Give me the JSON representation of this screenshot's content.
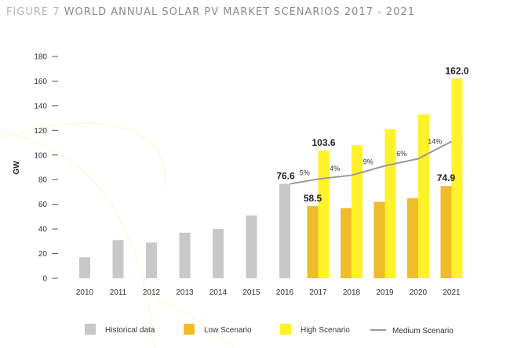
{
  "header": {
    "figure_label": "FIGURE 7",
    "title": "WORLD ANNUAL SOLAR PV MARKET SCENARIOS 2017 - 2021"
  },
  "chart_data": {
    "type": "bar",
    "title": "WORLD ANNUAL SOLAR PV MARKET SCENARIOS 2017 - 2021",
    "ylabel": "GW",
    "xlabel": "",
    "ylim": [
      0,
      180
    ],
    "yticks": [
      0,
      20,
      40,
      60,
      80,
      100,
      120,
      140,
      160,
      180
    ],
    "categories": [
      "2010",
      "2011",
      "2012",
      "2013",
      "2014",
      "2015",
      "2016",
      "2017",
      "2018",
      "2019",
      "2020",
      "2021"
    ],
    "grid": false,
    "legend_position": "bottom",
    "series": [
      {
        "name": "Historical data",
        "kind": "bar",
        "color": "#c8c8c8",
        "values": [
          17,
          31,
          29,
          37,
          40,
          51,
          76.6,
          null,
          null,
          null,
          null,
          null
        ]
      },
      {
        "name": "Low Scenario",
        "kind": "bar",
        "color": "#efbc2c",
        "values": [
          null,
          null,
          null,
          null,
          null,
          null,
          null,
          58.5,
          57,
          62,
          65,
          74.9
        ]
      },
      {
        "name": "High Scenario",
        "kind": "bar",
        "color": "#fff12a",
        "values": [
          null,
          null,
          null,
          null,
          null,
          null,
          null,
          103.6,
          108,
          121,
          133,
          162.0
        ]
      },
      {
        "name": "Medium Scenario",
        "kind": "line",
        "color": "#999999",
        "values": [
          null,
          null,
          null,
          null,
          null,
          null,
          76.6,
          80.5,
          83.6,
          91.2,
          97,
          111
        ]
      }
    ],
    "data_labels": [
      {
        "category": "2016",
        "text": "76.6",
        "value": 76.6
      },
      {
        "category": "2017",
        "text": "58.5",
        "value": 58.5
      },
      {
        "category": "2017",
        "text": "103.6",
        "value": 103.6
      },
      {
        "category": "2021",
        "text": "74.9",
        "value": 74.9
      },
      {
        "category": "2021",
        "text": "162.0",
        "value": 162.0
      }
    ],
    "growth_labels": [
      {
        "between": [
          "2016",
          "2017"
        ],
        "text": "5%"
      },
      {
        "between": [
          "2017",
          "2018"
        ],
        "text": "4%"
      },
      {
        "between": [
          "2018",
          "2019"
        ],
        "text": "9%"
      },
      {
        "between": [
          "2019",
          "2020"
        ],
        "text": "6%"
      },
      {
        "between": [
          "2020",
          "2021"
        ],
        "text": "14%"
      }
    ]
  }
}
